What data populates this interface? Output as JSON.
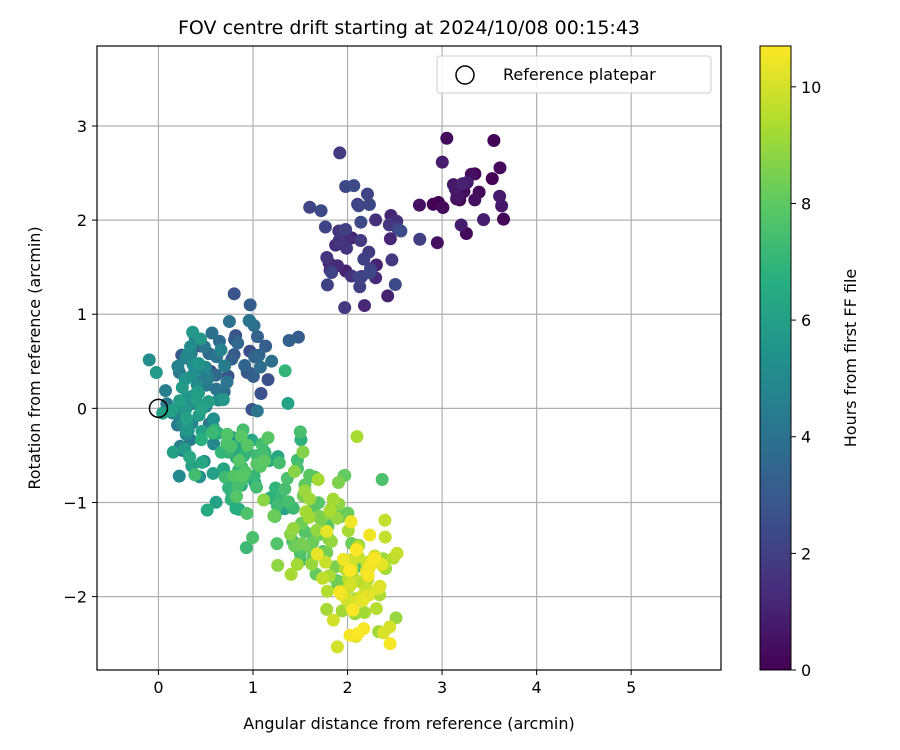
{
  "chart_data": {
    "type": "scatter",
    "title": "FOV centre drift starting at 2024/10/08 00:15:43",
    "xlabel": "Angular distance from reference (arcmin)",
    "ylabel": "Rotation from reference (arcmin)",
    "xlim": [
      -0.65,
      5.95
    ],
    "ylim": [
      -2.78,
      3.85
    ],
    "xticks": [
      0,
      1,
      2,
      3,
      4,
      5
    ],
    "xtick_labels": [
      "0",
      "1",
      "2",
      "3",
      "4",
      "5"
    ],
    "yticks": [
      -2,
      -1,
      0,
      1,
      2,
      3
    ],
    "ytick_labels": [
      "−2",
      "−1",
      "0",
      "1",
      "2",
      "3"
    ],
    "grid": true,
    "legend": {
      "position": "top-right",
      "entries": [
        "Reference platepar"
      ]
    },
    "colorbar": {
      "label": "Hours from first FF file",
      "colormap": "viridis",
      "range": [
        0,
        10.7
      ],
      "ticks": [
        0,
        2,
        4,
        6,
        8,
        10
      ],
      "tick_labels": [
        "0",
        "2",
        "4",
        "6",
        "8",
        "10"
      ]
    },
    "reference_point": {
      "x": 0,
      "y": 0,
      "label": "Reference platepar"
    },
    "clusters": [
      {
        "hours": [
          0.0,
          1.0
        ],
        "cx": 3.25,
        "cy": 2.3,
        "sx": 0.28,
        "sy": 0.25,
        "n": 26
      },
      {
        "hours": [
          1.0,
          2.5
        ],
        "cx": 2.15,
        "cy": 1.8,
        "sx": 0.25,
        "sy": 0.35,
        "n": 48
      },
      {
        "hours": [
          2.5,
          4.3
        ],
        "cx": 0.85,
        "cy": 0.6,
        "sx": 0.25,
        "sy": 0.25,
        "n": 40
      },
      {
        "hours": [
          4.0,
          6.2
        ],
        "cx": 0.35,
        "cy": 0.05,
        "sx": 0.18,
        "sy": 0.3,
        "n": 75
      },
      {
        "hours": [
          6.0,
          8.0
        ],
        "cx": 0.95,
        "cy": -0.6,
        "sx": 0.3,
        "sy": 0.3,
        "n": 80
      },
      {
        "hours": [
          7.5,
          9.3
        ],
        "cx": 1.7,
        "cy": -1.3,
        "sx": 0.22,
        "sy": 0.35,
        "n": 65
      },
      {
        "hours": [
          9.0,
          10.7
        ],
        "cx": 2.15,
        "cy": -1.8,
        "sx": 0.2,
        "sy": 0.3,
        "n": 70
      }
    ],
    "point_samples": [
      {
        "x": 3.05,
        "y": 2.87,
        "h": 0.3
      },
      {
        "x": 3.65,
        "y": 2.01,
        "h": 0.1
      },
      {
        "x": 2.95,
        "y": 1.76,
        "h": 0.5
      },
      {
        "x": 1.97,
        "y": 1.07,
        "h": 1.8
      },
      {
        "x": 0.97,
        "y": 1.1,
        "h": 3.1
      },
      {
        "x": 0.15,
        "y": -0.05,
        "h": 4.5
      },
      {
        "x": 0.22,
        "y": -0.72,
        "h": 5.0
      },
      {
        "x": 1.5,
        "y": -0.25,
        "h": 7.5
      },
      {
        "x": 0.93,
        "y": -1.48,
        "h": 7.2
      },
      {
        "x": 2.1,
        "y": -0.3,
        "h": 9.3
      },
      {
        "x": 2.45,
        "y": -2.5,
        "h": 10.6
      },
      {
        "x": 1.85,
        "y": -2.25,
        "h": 10.0
      }
    ]
  }
}
